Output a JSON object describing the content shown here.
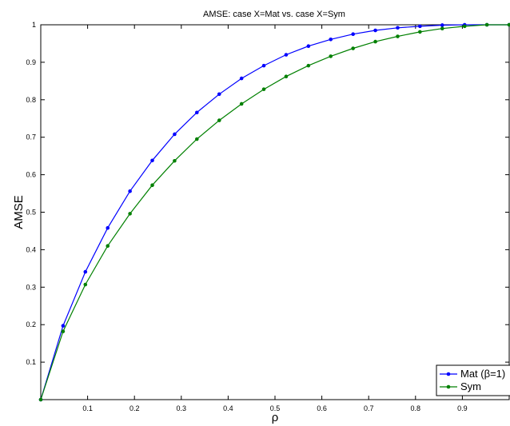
{
  "chart_data": {
    "type": "line",
    "title": "AMSE: case X=Mat vs. case X=Sym",
    "xlabel": "ρ",
    "ylabel": "AMSE",
    "xlim": [
      0,
      1
    ],
    "ylim": [
      0,
      1
    ],
    "xticks": [
      0.1,
      0.2,
      0.3,
      0.4,
      0.5,
      0.6,
      0.7,
      0.8,
      0.9
    ],
    "xtick_labels": [
      "0.1",
      "0.2",
      "0.3",
      "0.4",
      "0.5",
      "0.6",
      "0.7",
      "0.8",
      "0.9"
    ],
    "yticks": [
      0.1,
      0.2,
      0.3,
      0.4,
      0.5,
      0.6,
      0.7,
      0.8,
      0.9,
      1
    ],
    "ytick_labels": [
      "0.1",
      "0.2",
      "0.3",
      "0.4",
      "0.5",
      "0.6",
      "0.7",
      "0.8",
      "0.9",
      "1"
    ],
    "grid": false,
    "legend_position": "bottom-right",
    "x": [
      0,
      0.0476,
      0.0952,
      0.1429,
      0.1905,
      0.2381,
      0.2857,
      0.3333,
      0.381,
      0.4286,
      0.4762,
      0.5238,
      0.5714,
      0.619,
      0.6667,
      0.7143,
      0.7619,
      0.8095,
      0.8571,
      0.9048,
      0.9524,
      1.0
    ],
    "series": [
      {
        "name": "Mat (β=1)",
        "color": "#0000ff",
        "values": [
          0.0,
          0.197,
          0.341,
          0.458,
          0.556,
          0.638,
          0.708,
          0.766,
          0.815,
          0.857,
          0.891,
          0.92,
          0.943,
          0.961,
          0.975,
          0.985,
          0.992,
          0.996,
          0.999,
          1.0,
          1.0,
          1.0
        ]
      },
      {
        "name": "Sym",
        "color": "#008000",
        "values": [
          0.0,
          0.182,
          0.307,
          0.41,
          0.496,
          0.572,
          0.637,
          0.695,
          0.745,
          0.789,
          0.828,
          0.862,
          0.891,
          0.916,
          0.937,
          0.955,
          0.969,
          0.981,
          0.99,
          0.996,
          1.0,
          1.0
        ]
      }
    ]
  }
}
